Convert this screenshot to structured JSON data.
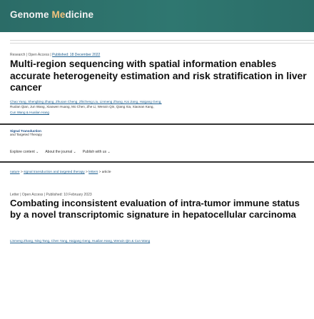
{
  "header": {
    "title_prefix": "Genome ",
    "title_accent": "Me",
    "title_suffix": "dicine"
  },
  "article1": {
    "research_label": "Research",
    "access_label": "Open Access",
    "published_label": "Published: 18 December 2022",
    "title": "Multi-region sequencing with spatial information enables accurate heterogeneity estimation and risk stratification in liver cancer",
    "authors_line1": "Chao Yang, Shengbing Zhang, Zhuoan Cheng, Zhicheng Liu, Linmeng Zhang, Kai Jiang, Haigang Geng,",
    "authors_line2": "Ruolan Qian, Jun Wang, Xiaowen Huang, Mo Chen, Zhe Li, Wenxin Qin, Qiang Xia, Xiaonan Kang,",
    "authors_line3": "Cun Wang & Hualian Hang"
  },
  "journal": {
    "logo_line1": "Signal Transduction",
    "logo_line2": "and Targeted Therapy",
    "nav": [
      {
        "label": "Explore content ⌄"
      },
      {
        "label": "About the journal ⌄"
      },
      {
        "label": "Publish with us ⌄"
      }
    ]
  },
  "breadcrumb": {
    "item1": "nature",
    "item2": "signal transduction and targeted therapy",
    "item3": "letters",
    "item4": "article",
    "sep": " > "
  },
  "article2": {
    "type_label": "Letter",
    "access_label": "Open Access",
    "published_label": "Published: 10 February 2023",
    "title": "Combating inconsistent evaluation of intra-tumor immune status by a novel transcriptomic signature in hepatocellular carcinoma",
    "authors": "Linmeng Zhang, Ning Tang, Chen Yang, Haigang Geng, Hualian Hang, Wenxin Qin & Cun Wang"
  }
}
